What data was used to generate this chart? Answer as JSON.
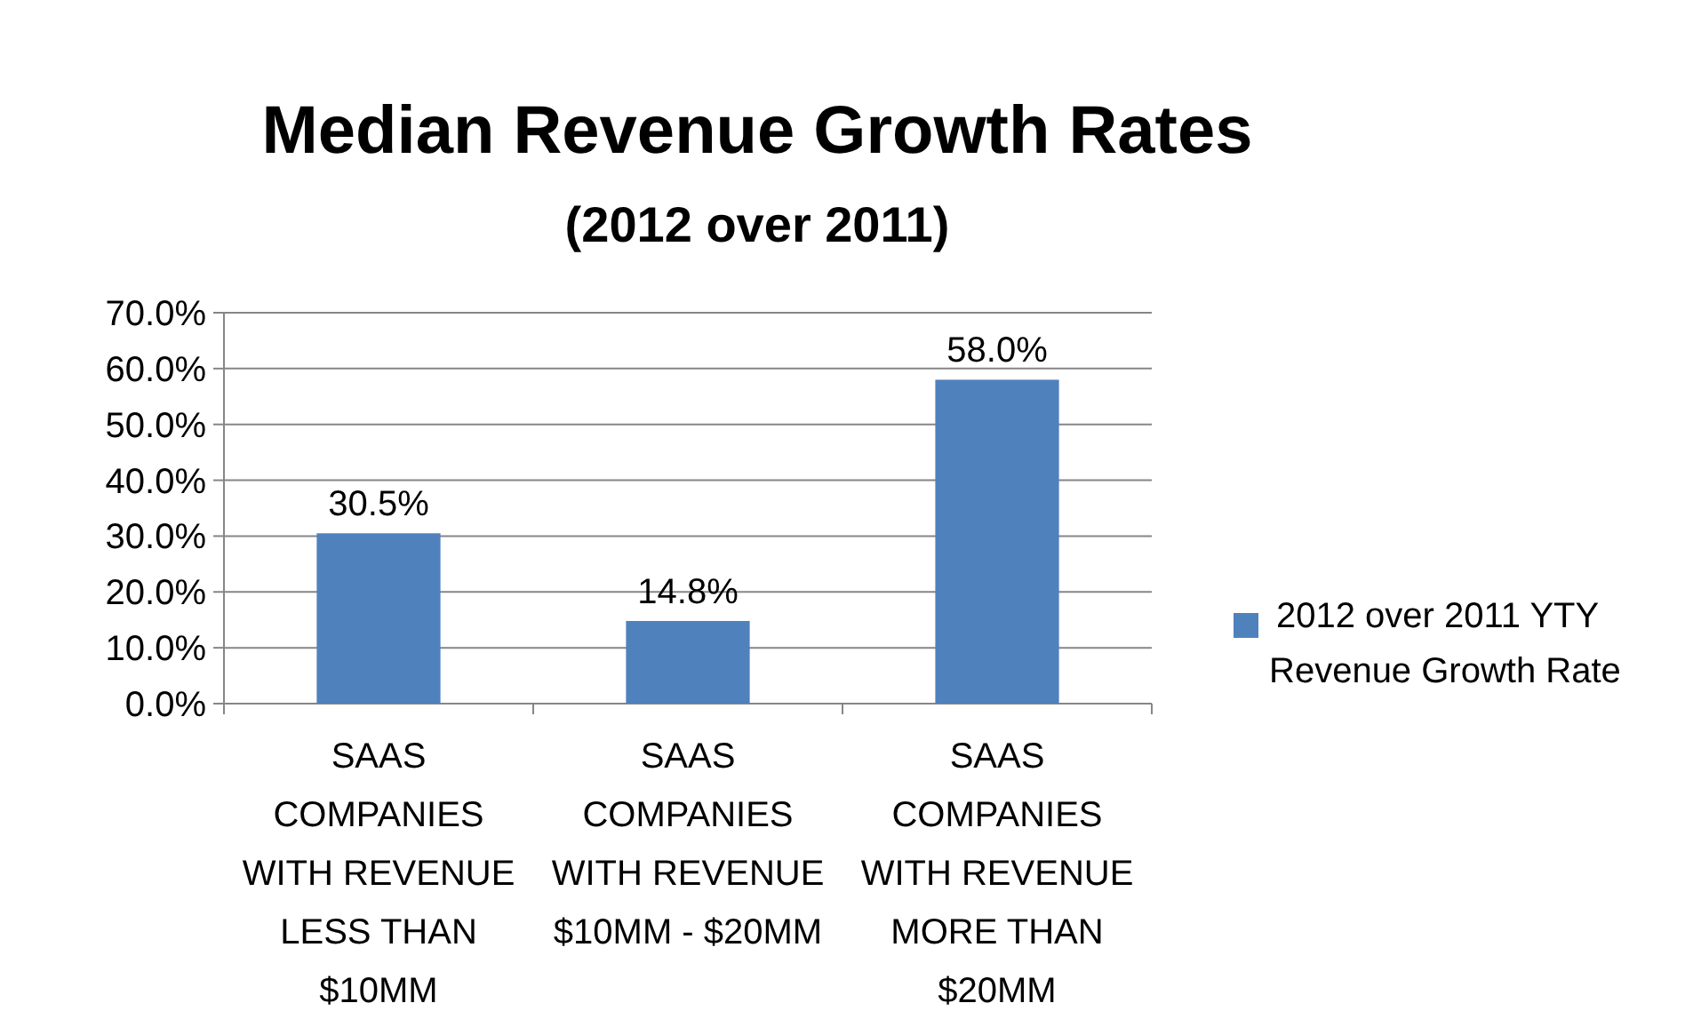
{
  "chart_data": {
    "type": "bar",
    "title": "Median Revenue Growth Rates",
    "subtitle": "(2012 over 2011)",
    "categories": [
      "SAAS COMPANIES WITH REVENUE LESS THAN $10MM",
      "SAAS COMPANIES WITH REVENUE $10MM - $20MM",
      "SAAS COMPANIES WITH REVENUE MORE THAN $20MM"
    ],
    "series": [
      {
        "name": "2012 over 2011 YTY Revenue Growth Rate",
        "color": "#4f81bd",
        "values": [
          30.5,
          14.8,
          58.0
        ],
        "value_labels": [
          "30.5%",
          "14.8%",
          "58.0%"
        ]
      }
    ],
    "ylim": [
      0,
      70
    ],
    "yticks": [
      {
        "value": 0,
        "label": "0.0%"
      },
      {
        "value": 10,
        "label": "10.0%"
      },
      {
        "value": 20,
        "label": "20.0%"
      },
      {
        "value": 30,
        "label": "30.0%"
      },
      {
        "value": 40,
        "label": "40.0%"
      },
      {
        "value": 50,
        "label": "50.0%"
      },
      {
        "value": 60,
        "label": "60.0%"
      },
      {
        "value": 70,
        "label": "70.0%"
      }
    ],
    "grid": "y",
    "legend": "right"
  }
}
